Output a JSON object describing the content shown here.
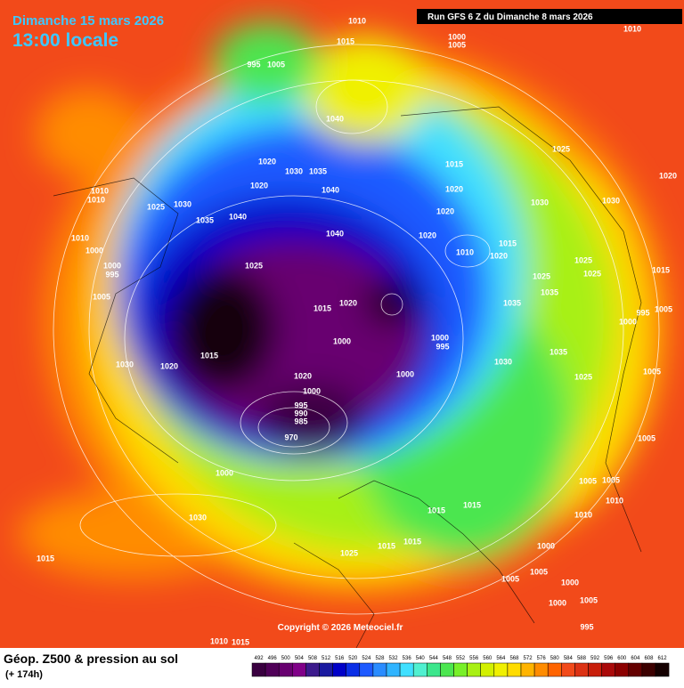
{
  "header": {
    "date": "Dimanche 15 mars 2026",
    "time": "13:00 locale",
    "run": "Run GFS 6 Z du Dimanche 8 mars 2026"
  },
  "copyright": "Copyright © 2026 Meteociel.fr",
  "footer": {
    "title": "Géop. Z500 & pression au sol",
    "lead": "(+ 174h)"
  },
  "legend": {
    "values": [
      492,
      496,
      500,
      504,
      508,
      512,
      516,
      520,
      524,
      528,
      532,
      536,
      540,
      544,
      548,
      552,
      556,
      560,
      564,
      568,
      572,
      576,
      580,
      584,
      588,
      592,
      596,
      600,
      604,
      608,
      612
    ],
    "colors": [
      "#3a0040",
      "#500058",
      "#680070",
      "#800088",
      "#3c1a8c",
      "#1a1aa0",
      "#0000c8",
      "#0a2ee6",
      "#1e5aff",
      "#2a8cff",
      "#30b4ff",
      "#40e0ff",
      "#50f0d0",
      "#3ce68c",
      "#4ce650",
      "#78f028",
      "#a8f014",
      "#d2f000",
      "#f0f000",
      "#ffdc00",
      "#ffb400",
      "#ff8c00",
      "#ff6400",
      "#f24a1a",
      "#dc3214",
      "#c81e0a",
      "#aa0a0a",
      "#8c0000",
      "#640000",
      "#3c0000",
      "#140000"
    ]
  },
  "isobars": [
    1010,
    1015,
    1000,
    1005,
    1010,
    995,
    1005,
    1040,
    1020,
    1030,
    1035,
    1020,
    1040,
    1015,
    1020,
    1025,
    1020,
    1010,
    1010,
    1025,
    1030,
    1035,
    1040,
    1040,
    1020,
    1030,
    1030,
    1020,
    1010,
    1015,
    1020,
    1010,
    1000,
    1000,
    995,
    1025,
    1005,
    1025,
    1025,
    1025,
    1015,
    1035,
    1035,
    1015,
    1020,
    995,
    1005,
    1000,
    1000,
    1000,
    995,
    1015,
    1030,
    1020,
    1000,
    1030,
    1035,
    1005,
    1025,
    1020,
    1000,
    995,
    990,
    985,
    970,
    1005,
    1000,
    1005,
    1005,
    1010,
    1015,
    1015,
    1010,
    1030,
    1000,
    1015,
    1015,
    1025,
    1015,
    1005,
    1000,
    1005,
    1000,
    1005,
    995,
    1015,
    1010
  ]
}
